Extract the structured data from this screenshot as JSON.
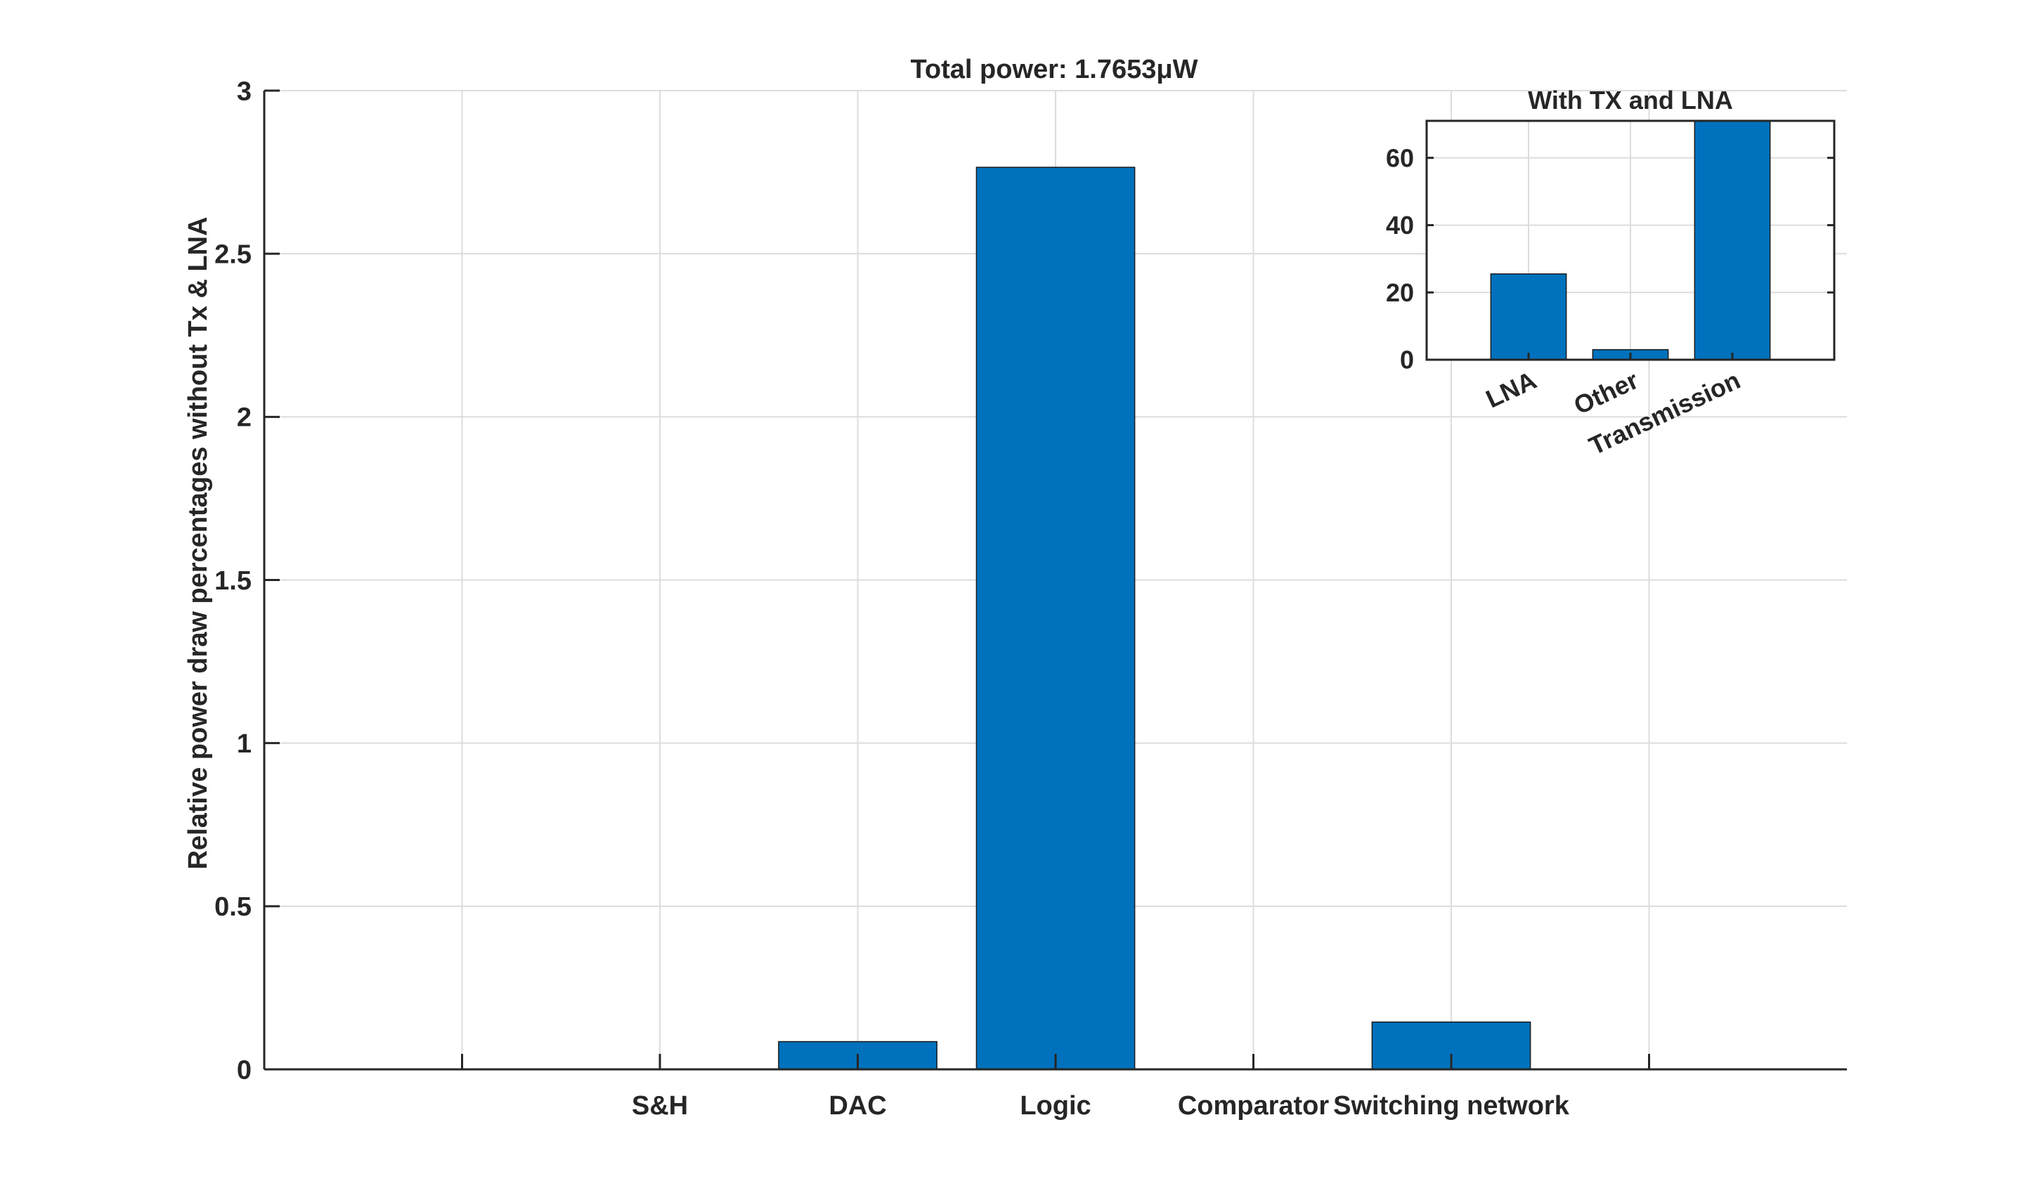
{
  "chart_data": [
    {
      "type": "bar",
      "title": "Total power: 1.7653μW",
      "xlabel": "",
      "ylabel": "Relative power draw percentages without Tx & LNA",
      "categories": [
        "",
        "S&H",
        "DAC",
        "Logic",
        "Comparator",
        "Switching network",
        ""
      ],
      "values": [
        0,
        0,
        0.085,
        2.765,
        0,
        0.145,
        0
      ],
      "ylim": [
        0,
        3
      ],
      "yticks": [
        0,
        0.5,
        1,
        1.5,
        2,
        2.5,
        3
      ],
      "ytick_labels": [
        "0",
        "0.5",
        "1",
        "1.5",
        "2",
        "2.5",
        "3"
      ],
      "grid": true,
      "bar_color": "#0072BD"
    },
    {
      "type": "bar",
      "title": "With TX and LNA",
      "xlabel": "",
      "ylabel": "",
      "categories": [
        "LNA",
        "Other",
        "Transmission"
      ],
      "values": [
        25.5,
        3.0,
        71.5
      ],
      "ylim": [
        0,
        71
      ],
      "yticks": [
        0,
        20,
        40,
        60
      ],
      "ytick_labels": [
        "0",
        "20",
        "40",
        "60"
      ],
      "grid": true,
      "bar_color": "#0072BD"
    }
  ]
}
